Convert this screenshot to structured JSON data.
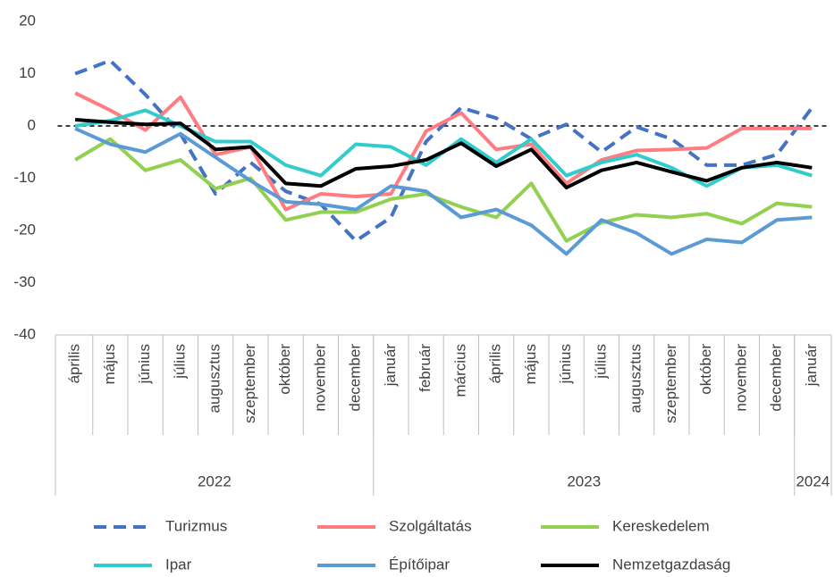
{
  "chart_data": {
    "type": "line",
    "categories": [
      "április",
      "május",
      "június",
      "július",
      "augusztus",
      "szeptember",
      "október",
      "november",
      "december",
      "január",
      "február",
      "március",
      "április",
      "május",
      "június",
      "július",
      "augusztus",
      "szeptember",
      "október",
      "november",
      "december",
      "január"
    ],
    "category_groups": [
      {
        "label": "2022",
        "span": 9
      },
      {
        "label": "2023",
        "span": 12
      },
      {
        "label": "2024",
        "span": 1
      }
    ],
    "ylim": [
      -40,
      20
    ],
    "yticks": [
      20,
      10,
      0,
      -10,
      -20,
      -30,
      -40
    ],
    "series": [
      {
        "name": "Turizmus",
        "color": "#4472c4",
        "dashed": true,
        "values": [
          10,
          12.5,
          6,
          -1.5,
          -13,
          -7,
          -12.5,
          -15,
          -22,
          -17.5,
          -3,
          3.5,
          1.5,
          -2.5,
          0.3,
          -5,
          -0.2,
          -2.5,
          -7.5,
          -7.5,
          -5.5,
          3.5
        ]
      },
      {
        "name": "Szolgáltatás",
        "color": "#ff7c80",
        "values": [
          6.3,
          3,
          -0.8,
          5.5,
          -5.5,
          -4,
          -16,
          -13,
          -13.5,
          -13,
          -1,
          2.5,
          -4.5,
          -3.5,
          -11,
          -6.5,
          -4.7,
          -4.5,
          -4.2,
          -0.5,
          -0.5,
          -0.5
        ]
      },
      {
        "name": "Kereskedelem",
        "color": "#92d050",
        "values": [
          -6.5,
          -2.5,
          -8.5,
          -6.5,
          -12,
          -10,
          -18,
          -16.5,
          -16.5,
          -14,
          -13,
          -15.5,
          -17.5,
          -11,
          -22,
          -18.5,
          -17,
          -17.5,
          -16.8,
          -18.7,
          -14.8,
          -15.5
        ]
      },
      {
        "name": "Ipar",
        "color": "#33cccc",
        "values": [
          0,
          1,
          3,
          0,
          -3,
          -3,
          -7.5,
          -9.5,
          -3.5,
          -4,
          -7.5,
          -2.5,
          -7,
          -2.5,
          -9.5,
          -7,
          -5.5,
          -8,
          -11.5,
          -8,
          -7.5,
          -9.5
        ]
      },
      {
        "name": "Építőipar",
        "color": "#5b9bd5",
        "values": [
          -0.5,
          -3.5,
          -5,
          -1.5,
          -6,
          -10.5,
          -14.5,
          -15,
          -16,
          -11.5,
          -12.5,
          -17.5,
          -16,
          -19,
          -24.5,
          -18,
          -20.5,
          -24.5,
          -21.7,
          -22.3,
          -18,
          -17.5
        ]
      },
      {
        "name": "Nemzetgazdaság",
        "color": "#000000",
        "values": [
          1.2,
          0.7,
          0.3,
          0.5,
          -4.5,
          -4,
          -11,
          -11.5,
          -8.2,
          -7.7,
          -6.5,
          -3.3,
          -7.7,
          -4.5,
          -11.8,
          -8.5,
          -7,
          -8.8,
          -10.5,
          -8,
          -7,
          -8
        ]
      }
    ]
  }
}
